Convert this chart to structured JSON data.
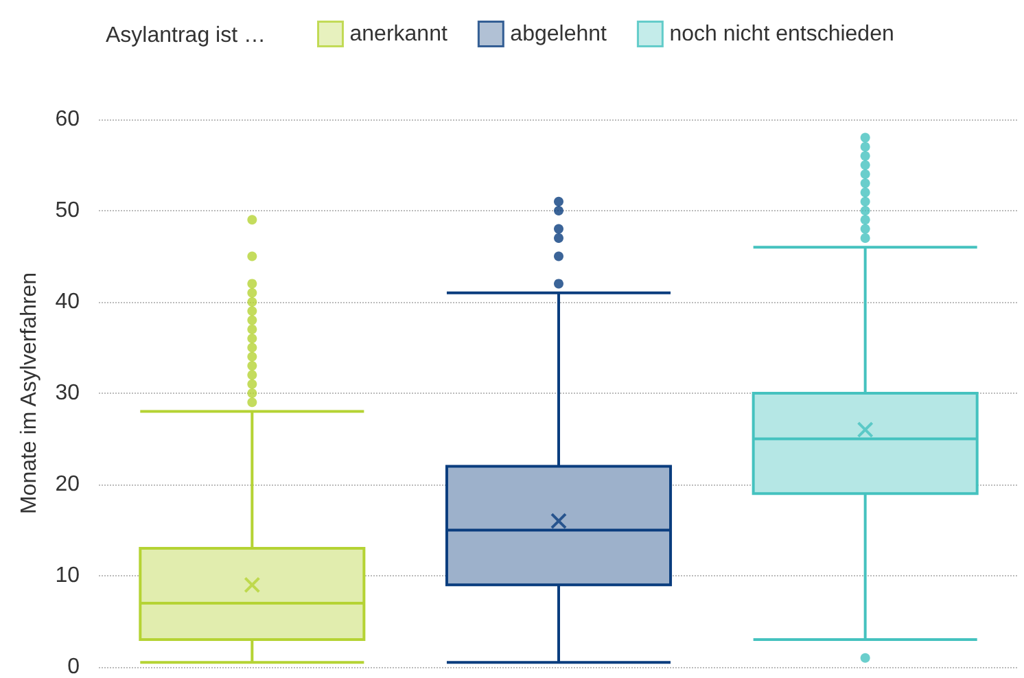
{
  "chart_data": {
    "type": "box",
    "legend_title": "Asylantrag ist …",
    "ylabel": "Monate im Asylverfahren",
    "categories": [
      null,
      null,
      null
    ],
    "series": [
      {
        "name": "anerkannt",
        "color": "#b5d334",
        "boxes": [
          {
            "low": 0.5,
            "q1": 3,
            "median": 7,
            "q3": 13,
            "high": 28,
            "mean": 9,
            "outliers": [
              29,
              30,
              31,
              32,
              33,
              34,
              35,
              36,
              37,
              38,
              39,
              40,
              41,
              42,
              45,
              49
            ]
          },
          null,
          null
        ]
      },
      {
        "name": "abgelehnt",
        "color": "#0a3d7e",
        "boxes": [
          null,
          {
            "low": 0.5,
            "q1": 9,
            "median": 15,
            "q3": 22,
            "high": 41,
            "mean": 16,
            "outliers": [
              42,
              45,
              47,
              48,
              50,
              51
            ]
          },
          null
        ]
      },
      {
        "name": "noch nicht entschieden",
        "color": "#45c2bf",
        "boxes": [
          null,
          null,
          {
            "low": 3,
            "q1": 19,
            "median": 25,
            "q3": 30,
            "high": 46,
            "mean": 26,
            "outliers": [
              1,
              47,
              48,
              49,
              50,
              51,
              52,
              53,
              54,
              55,
              56,
              57,
              58
            ]
          }
        ]
      }
    ],
    "ylim": [
      0,
      60
    ],
    "yticks": [
      0,
      10,
      20,
      30,
      40,
      50,
      60
    ],
    "grid": "y",
    "legend": "top"
  }
}
